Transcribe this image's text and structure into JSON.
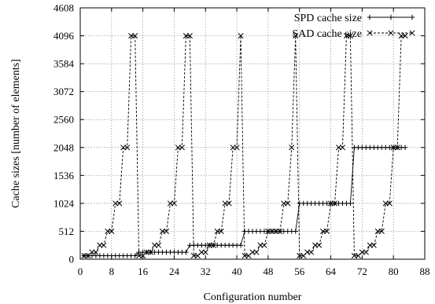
{
  "chart_data": {
    "type": "line",
    "title": "",
    "xlabel": "Configuration number",
    "ylabel": "Cache sizes [number of elements]",
    "xlim": [
      0,
      88
    ],
    "ylim": [
      0,
      4608
    ],
    "x_ticks": [
      0,
      8,
      16,
      24,
      32,
      40,
      48,
      56,
      64,
      72,
      80,
      88
    ],
    "y_ticks": [
      0,
      512,
      1024,
      1536,
      2048,
      2560,
      3072,
      3584,
      4096,
      4608
    ],
    "grid": true,
    "legend_position": "top-right",
    "series": [
      {
        "name": "SPD cache size",
        "marker": "plus",
        "line_style": "solid",
        "points": [
          [
            1,
            64
          ],
          [
            2,
            64
          ],
          [
            3,
            64
          ],
          [
            4,
            64
          ],
          [
            5,
            64
          ],
          [
            6,
            64
          ],
          [
            7,
            64
          ],
          [
            8,
            64
          ],
          [
            9,
            64
          ],
          [
            10,
            64
          ],
          [
            11,
            64
          ],
          [
            12,
            64
          ],
          [
            13,
            64
          ],
          [
            14,
            64
          ],
          [
            15,
            128
          ],
          [
            16,
            128
          ],
          [
            17,
            128
          ],
          [
            18,
            128
          ],
          [
            19,
            128
          ],
          [
            20,
            128
          ],
          [
            21,
            128
          ],
          [
            22,
            128
          ],
          [
            23,
            128
          ],
          [
            24,
            128
          ],
          [
            25,
            128
          ],
          [
            26,
            128
          ],
          [
            27,
            128
          ],
          [
            28,
            256
          ],
          [
            29,
            256
          ],
          [
            30,
            256
          ],
          [
            31,
            256
          ],
          [
            32,
            256
          ],
          [
            33,
            256
          ],
          [
            34,
            256
          ],
          [
            35,
            256
          ],
          [
            36,
            256
          ],
          [
            37,
            256
          ],
          [
            38,
            256
          ],
          [
            39,
            256
          ],
          [
            40,
            256
          ],
          [
            41,
            256
          ],
          [
            42,
            512
          ],
          [
            43,
            512
          ],
          [
            44,
            512
          ],
          [
            45,
            512
          ],
          [
            46,
            512
          ],
          [
            47,
            512
          ],
          [
            48,
            512
          ],
          [
            49,
            512
          ],
          [
            50,
            512
          ],
          [
            51,
            512
          ],
          [
            52,
            512
          ],
          [
            53,
            512
          ],
          [
            54,
            512
          ],
          [
            55,
            512
          ],
          [
            56,
            1024
          ],
          [
            57,
            1024
          ],
          [
            58,
            1024
          ],
          [
            59,
            1024
          ],
          [
            60,
            1024
          ],
          [
            61,
            1024
          ],
          [
            62,
            1024
          ],
          [
            63,
            1024
          ],
          [
            64,
            1024
          ],
          [
            65,
            1024
          ],
          [
            66,
            1024
          ],
          [
            67,
            1024
          ],
          [
            68,
            1024
          ],
          [
            69,
            1024
          ],
          [
            70,
            2048
          ],
          [
            71,
            2048
          ],
          [
            72,
            2048
          ],
          [
            73,
            2048
          ],
          [
            74,
            2048
          ],
          [
            75,
            2048
          ],
          [
            76,
            2048
          ],
          [
            77,
            2048
          ],
          [
            78,
            2048
          ],
          [
            79,
            2048
          ],
          [
            80,
            2048
          ],
          [
            81,
            2048
          ],
          [
            82,
            2048
          ],
          [
            83,
            2048
          ]
        ]
      },
      {
        "name": "SAD cache size",
        "marker": "cross",
        "line_style": "dashed",
        "points": [
          [
            1,
            64
          ],
          [
            2,
            64
          ],
          [
            3,
            128
          ],
          [
            4,
            128
          ],
          [
            5,
            256
          ],
          [
            6,
            256
          ],
          [
            7,
            512
          ],
          [
            8,
            512
          ],
          [
            9,
            1024
          ],
          [
            10,
            1024
          ],
          [
            11,
            2048
          ],
          [
            12,
            2048
          ],
          [
            13,
            4096
          ],
          [
            14,
            4096
          ],
          [
            15,
            64
          ],
          [
            16,
            64
          ],
          [
            17,
            128
          ],
          [
            18,
            128
          ],
          [
            19,
            256
          ],
          [
            20,
            256
          ],
          [
            21,
            512
          ],
          [
            22,
            512
          ],
          [
            23,
            1024
          ],
          [
            24,
            1024
          ],
          [
            25,
            2048
          ],
          [
            26,
            2048
          ],
          [
            27,
            4096
          ],
          [
            28,
            4096
          ],
          [
            29,
            64
          ],
          [
            30,
            64
          ],
          [
            31,
            128
          ],
          [
            32,
            128
          ],
          [
            33,
            256
          ],
          [
            34,
            256
          ],
          [
            35,
            512
          ],
          [
            36,
            512
          ],
          [
            37,
            1024
          ],
          [
            38,
            1024
          ],
          [
            39,
            2048
          ],
          [
            40,
            2048
          ],
          [
            41,
            4096
          ],
          [
            42,
            64
          ],
          [
            43,
            64
          ],
          [
            44,
            128
          ],
          [
            45,
            128
          ],
          [
            46,
            256
          ],
          [
            47,
            256
          ],
          [
            48,
            512
          ],
          [
            49,
            512
          ],
          [
            50,
            512
          ],
          [
            51,
            512
          ],
          [
            52,
            1024
          ],
          [
            53,
            1024
          ],
          [
            54,
            2048
          ],
          [
            55,
            4096
          ],
          [
            56,
            64
          ],
          [
            57,
            64
          ],
          [
            58,
            128
          ],
          [
            59,
            128
          ],
          [
            60,
            256
          ],
          [
            61,
            256
          ],
          [
            62,
            512
          ],
          [
            63,
            512
          ],
          [
            64,
            1024
          ],
          [
            65,
            1024
          ],
          [
            66,
            2048
          ],
          [
            67,
            2048
          ],
          [
            68,
            4096
          ],
          [
            69,
            4096
          ],
          [
            70,
            64
          ],
          [
            71,
            64
          ],
          [
            72,
            128
          ],
          [
            73,
            128
          ],
          [
            74,
            256
          ],
          [
            75,
            256
          ],
          [
            76,
            512
          ],
          [
            77,
            512
          ],
          [
            78,
            1024
          ],
          [
            79,
            1024
          ],
          [
            80,
            2048
          ],
          [
            81,
            2048
          ],
          [
            82,
            4096
          ],
          [
            83,
            4096
          ]
        ]
      }
    ]
  }
}
